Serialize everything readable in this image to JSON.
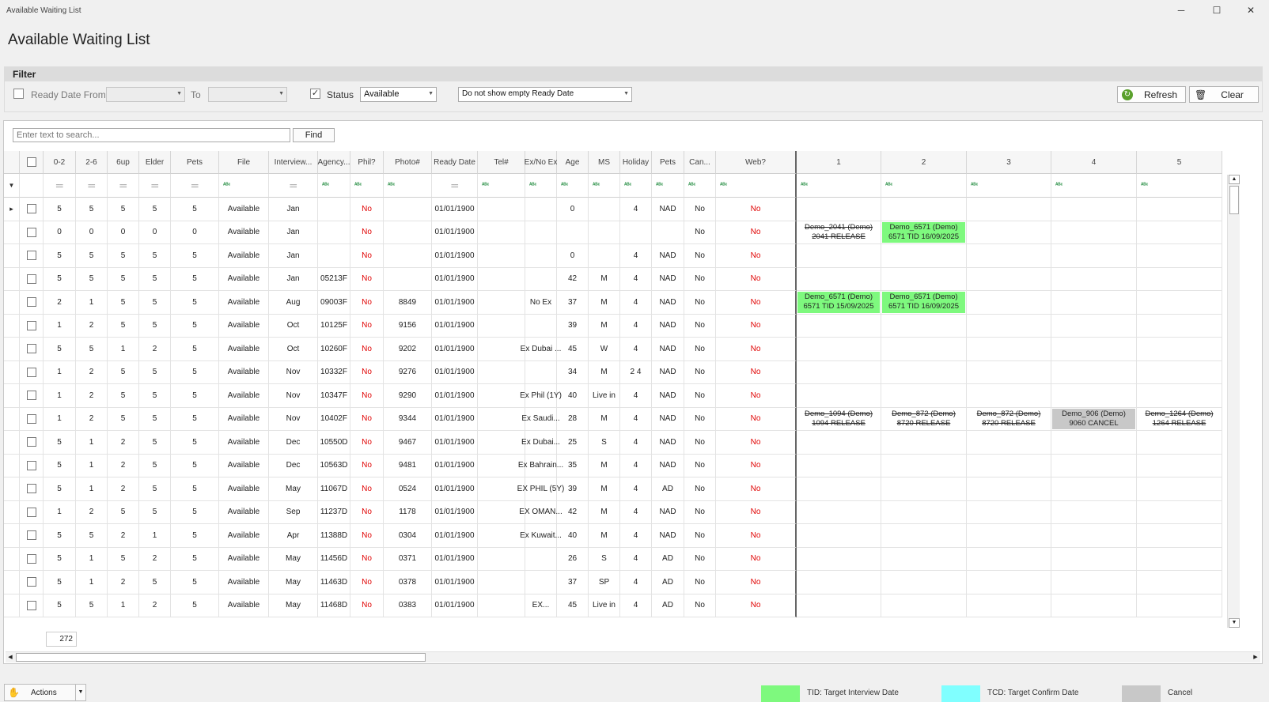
{
  "window": {
    "title": "Available Waiting List",
    "minimize": "─",
    "maximize": "☐",
    "close": "✕"
  },
  "heading": "Available Waiting List",
  "filter": {
    "title": "Filter",
    "ready_from_label": "Ready Date From",
    "to_label": "To",
    "status_label": "Status",
    "status_value": "Available",
    "ready_date_option": "Do not show empty Ready Date",
    "refresh_label": "Refresh",
    "clear_label": "Clear"
  },
  "search": {
    "placeholder": "Enter text to search...",
    "find_label": "Find"
  },
  "columns": [
    "0-2",
    "2-6",
    "6up",
    "Elder",
    "Pets",
    "File",
    "Interview...",
    "Agency...",
    "Phil?",
    "Photo#",
    "Ready Date",
    "Tel#",
    "Ex/No Ex",
    "Age",
    "MS",
    "Holiday",
    "Pets",
    "Can...",
    "Web?",
    "1",
    "2",
    "3",
    "4",
    "5"
  ],
  "rows": [
    {
      "c": [
        "5",
        "5",
        "5",
        "5",
        "5",
        "Available",
        "Jan",
        "",
        "No",
        "",
        "01/01/1900",
        "",
        "",
        "0",
        "",
        "4",
        "NAD",
        "No",
        "No"
      ],
      "b": []
    },
    {
      "c": [
        "0",
        "0",
        "0",
        "0",
        "0",
        "Available",
        "Jan",
        "",
        "No",
        "",
        "01/01/1900",
        "",
        "",
        "",
        "",
        "",
        "",
        "No",
        "No"
      ],
      "b": [
        {
          "t1": "Demo_2041 (Demo)",
          "t2": "2041 RELEASE",
          "k": "s"
        },
        {
          "t1": "Demo_6571 (Demo)",
          "t2": "6571 TID 16/09/2025",
          "k": "g"
        }
      ]
    },
    {
      "c": [
        "5",
        "5",
        "5",
        "5",
        "5",
        "Available",
        "Jan",
        "",
        "No",
        "",
        "01/01/1900",
        "",
        "",
        "0",
        "",
        "4",
        "NAD",
        "No",
        "No"
      ],
      "b": []
    },
    {
      "c": [
        "5",
        "5",
        "5",
        "5",
        "5",
        "Available",
        "Jan",
        "05213F",
        "No",
        "",
        "01/01/1900",
        "",
        "",
        "42",
        "M",
        "4",
        "NAD",
        "No",
        "No"
      ],
      "b": []
    },
    {
      "c": [
        "2",
        "1",
        "5",
        "5",
        "5",
        "Available",
        "Aug",
        "09003F",
        "No",
        "8849",
        "01/01/1900",
        "",
        "No Ex",
        "37",
        "M",
        "4",
        "NAD",
        "No",
        "No"
      ],
      "b": [
        {
          "t1": "Demo_6571 (Demo)",
          "t2": "6571 TID 15/09/2025",
          "k": "g"
        },
        {
          "t1": "Demo_6571 (Demo)",
          "t2": "6571 TID 16/09/2025",
          "k": "g"
        }
      ]
    },
    {
      "c": [
        "1",
        "2",
        "5",
        "5",
        "5",
        "Available",
        "Oct",
        "10125F",
        "No",
        "9156",
        "01/01/1900",
        "",
        "",
        "39",
        "M",
        "4",
        "NAD",
        "No",
        "No"
      ],
      "b": []
    },
    {
      "c": [
        "5",
        "5",
        "1",
        "2",
        "5",
        "Available",
        "Oct",
        "10260F",
        "No",
        "9202",
        "01/01/1900",
        "",
        "Ex Dubai ...",
        "45",
        "W",
        "4",
        "NAD",
        "No",
        "No"
      ],
      "b": []
    },
    {
      "c": [
        "1",
        "2",
        "5",
        "5",
        "5",
        "Available",
        "Nov",
        "10332F",
        "No",
        "9276",
        "01/01/1900",
        "",
        "",
        "34",
        "M",
        "2 4",
        "NAD",
        "No",
        "No"
      ],
      "b": []
    },
    {
      "c": [
        "1",
        "2",
        "5",
        "5",
        "5",
        "Available",
        "Nov",
        "10347F",
        "No",
        "9290",
        "01/01/1900",
        "",
        "Ex Phil (1Y)",
        "40",
        "Live in",
        "4",
        "NAD",
        "No",
        "No"
      ],
      "b": []
    },
    {
      "c": [
        "1",
        "2",
        "5",
        "5",
        "5",
        "Available",
        "Nov",
        "10402F",
        "No",
        "9344",
        "01/01/1900",
        "",
        "Ex Saudi...",
        "28",
        "M",
        "4",
        "NAD",
        "No",
        "No"
      ],
      "b": [
        {
          "t1": "Demo_1094 (Demo)",
          "t2": "1094 RELEASE",
          "k": "s"
        },
        {
          "t1": "Demo_872 (Demo)",
          "t2": "8720 RELEASE",
          "k": "s"
        },
        {
          "t1": "Demo_872 (Demo)",
          "t2": "8720 RELEASE",
          "k": "s"
        },
        {
          "t1": "Demo_906 (Demo)",
          "t2": "9060 CANCEL",
          "k": "c"
        },
        {
          "t1": "Demo_1264 (Demo)",
          "t2": "1264 RELEASE",
          "k": "s"
        }
      ]
    },
    {
      "c": [
        "5",
        "1",
        "2",
        "5",
        "5",
        "Available",
        "Dec",
        "10550D",
        "No",
        "9467",
        "01/01/1900",
        "",
        "Ex Dubai...",
        "25",
        "S",
        "4",
        "NAD",
        "No",
        "No"
      ],
      "b": []
    },
    {
      "c": [
        "5",
        "1",
        "2",
        "5",
        "5",
        "Available",
        "Dec",
        "10563D",
        "No",
        "9481",
        "01/01/1900",
        "",
        "Ex Bahrain...",
        "35",
        "M",
        "4",
        "NAD",
        "No",
        "No"
      ],
      "b": []
    },
    {
      "c": [
        "5",
        "1",
        "2",
        "5",
        "5",
        "Available",
        "May",
        "11067D",
        "No",
        "0524",
        "01/01/1900",
        "",
        "EX PHIL (5Y)",
        "39",
        "M",
        "4",
        "AD",
        "No",
        "No"
      ],
      "b": []
    },
    {
      "c": [
        "1",
        "2",
        "5",
        "5",
        "5",
        "Available",
        "Sep",
        "11237D",
        "No",
        "1178",
        "01/01/1900",
        "",
        "EX OMAN...",
        "42",
        "M",
        "4",
        "NAD",
        "No",
        "No"
      ],
      "b": []
    },
    {
      "c": [
        "5",
        "5",
        "2",
        "1",
        "5",
        "Available",
        "Apr",
        "11388D",
        "No",
        "0304",
        "01/01/1900",
        "",
        "Ex Kuwait...",
        "40",
        "M",
        "4",
        "NAD",
        "No",
        "No"
      ],
      "b": []
    },
    {
      "c": [
        "5",
        "1",
        "5",
        "2",
        "5",
        "Available",
        "May",
        "11456D",
        "No",
        "0371",
        "01/01/1900",
        "",
        "",
        "26",
        "S",
        "4",
        "AD",
        "No",
        "No"
      ],
      "b": []
    },
    {
      "c": [
        "5",
        "1",
        "2",
        "5",
        "5",
        "Available",
        "May",
        "11463D",
        "No",
        "0378",
        "01/01/1900",
        "",
        "",
        "37",
        "SP",
        "4",
        "AD",
        "No",
        "No"
      ],
      "b": []
    },
    {
      "c": [
        "5",
        "5",
        "1",
        "2",
        "5",
        "Available",
        "May",
        "11468D",
        "No",
        "0383",
        "01/01/1900",
        "",
        "EX...",
        "45",
        "Live in",
        "4",
        "AD",
        "No",
        "No"
      ],
      "b": []
    }
  ],
  "record_count": "272",
  "actions_label": "Actions",
  "legend": [
    {
      "label": "TID: Target Interview Date",
      "color": "#7ef97e"
    },
    {
      "label": "TCD: Target Confirm Date",
      "color": "#80ffff"
    },
    {
      "label": "Cancel",
      "color": "#c8c8c8"
    }
  ]
}
